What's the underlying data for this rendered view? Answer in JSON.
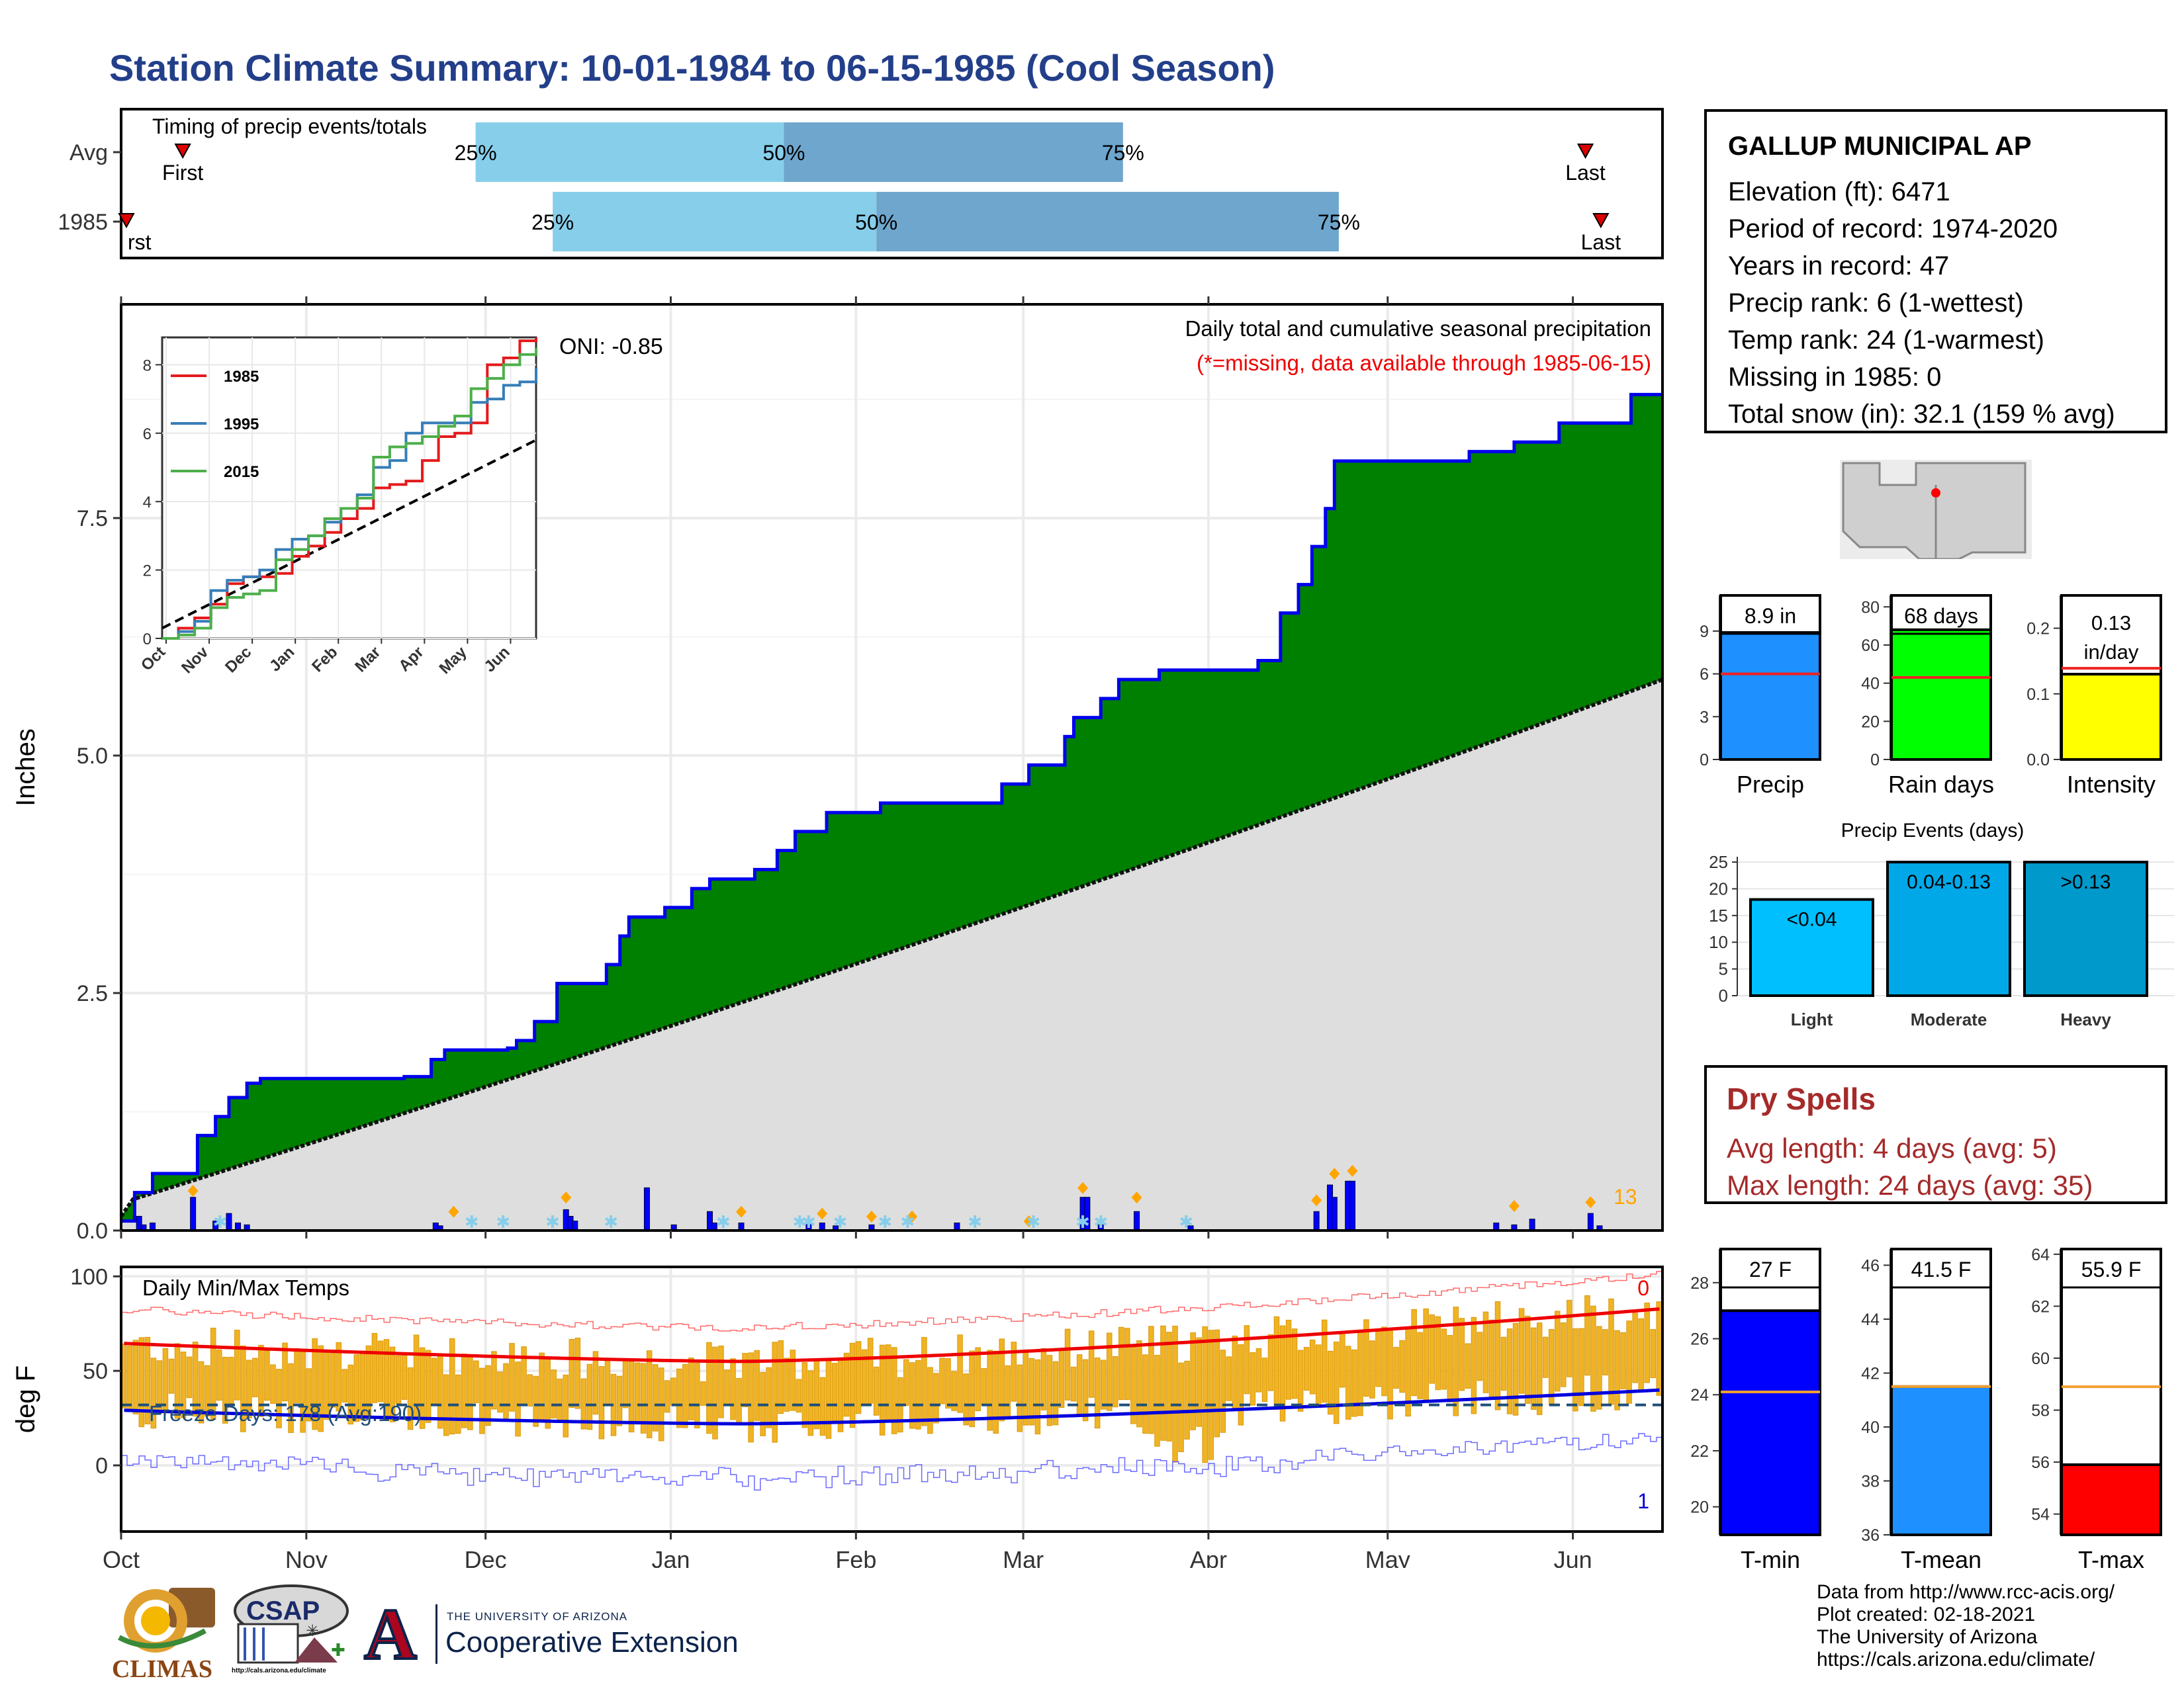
{
  "title": "Station Climate Summary: 10-01-1984 to 06-15-1985 (Cool Season)",
  "timing": {
    "label": "Timing of precip events/totals",
    "rows": [
      {
        "name": "Avg",
        "first_pos": 0.04,
        "q25": 0.23,
        "q50": 0.43,
        "q75": 0.65,
        "last_pos": 0.95
      },
      {
        "name": "1985",
        "first_pos": 0.0,
        "q25": 0.28,
        "q50": 0.49,
        "q75": 0.79,
        "last_pos": 0.96
      }
    ],
    "q_labels": [
      "25%",
      "50%",
      "75%"
    ],
    "first_label": "First",
    "first_label_clipped": "rst",
    "last_label": "Last"
  },
  "main_chart": {
    "ylabel": "Inches",
    "yticks": [
      0.0,
      2.5,
      5.0,
      7.5
    ],
    "ylim": [
      0,
      9.75
    ],
    "oni": "ONI: -0.85",
    "desc": "Daily total and cumulative seasonal precipitation",
    "missing_note": "(*=missing, data available through 1985-06-15)",
    "day_count_label": "13",
    "cumulative_1985": [
      [
        0,
        0.1
      ],
      [
        3,
        0.4
      ],
      [
        7,
        0.6
      ],
      [
        16,
        0.6
      ],
      [
        17,
        1.0
      ],
      [
        21,
        1.2
      ],
      [
        24,
        1.4
      ],
      [
        28,
        1.55
      ],
      [
        31,
        1.6
      ],
      [
        55,
        1.6
      ],
      [
        63,
        1.62
      ],
      [
        69,
        1.8
      ],
      [
        72,
        1.9
      ],
      [
        86,
        1.92
      ],
      [
        88,
        2.0
      ],
      [
        92,
        2.2
      ],
      [
        97,
        2.6
      ],
      [
        103,
        2.6
      ],
      [
        108,
        2.8
      ],
      [
        111,
        3.1
      ],
      [
        113,
        3.3
      ],
      [
        121,
        3.4
      ],
      [
        127,
        3.6
      ],
      [
        131,
        3.7
      ],
      [
        141,
        3.8
      ],
      [
        146,
        4.0
      ],
      [
        150,
        4.2
      ],
      [
        157,
        4.4
      ],
      [
        162,
        4.4
      ],
      [
        169,
        4.5
      ],
      [
        188,
        4.5
      ],
      [
        196,
        4.7
      ],
      [
        202,
        4.9
      ],
      [
        210,
        5.2
      ],
      [
        212,
        5.4
      ],
      [
        218,
        5.6
      ],
      [
        222,
        5.8
      ],
      [
        231,
        5.9
      ],
      [
        253,
        6.0
      ],
      [
        258,
        6.5
      ],
      [
        262,
        6.8
      ],
      [
        265,
        7.2
      ],
      [
        268,
        7.6
      ],
      [
        270,
        8.1
      ],
      [
        290,
        8.1
      ],
      [
        300,
        8.2
      ],
      [
        310,
        8.3
      ],
      [
        320,
        8.5
      ],
      [
        334,
        8.5
      ],
      [
        336,
        8.8
      ],
      [
        343,
        8.8
      ]
    ],
    "cumulative_avg_end": 5.8,
    "daily_events": [
      [
        4,
        0.15
      ],
      [
        5,
        0.06
      ],
      [
        7,
        0.08
      ],
      [
        16,
        0.35
      ],
      [
        21,
        0.1
      ],
      [
        24,
        0.18
      ],
      [
        26,
        0.08
      ],
      [
        28,
        0.06
      ],
      [
        70,
        0.08
      ],
      [
        71,
        0.05
      ],
      [
        99,
        0.22
      ],
      [
        100,
        0.15
      ],
      [
        101,
        0.1
      ],
      [
        117,
        0.45
      ],
      [
        123,
        0.06
      ],
      [
        131,
        0.2
      ],
      [
        132,
        0.08
      ],
      [
        138,
        0.08
      ],
      [
        153,
        0.07
      ],
      [
        156,
        0.08
      ],
      [
        159,
        0.05
      ],
      [
        167,
        0.06
      ],
      [
        186,
        0.08
      ],
      [
        214,
        0.35
      ],
      [
        215,
        0.35
      ],
      [
        218,
        0.06
      ],
      [
        226,
        0.2
      ],
      [
        238,
        0.05
      ],
      [
        266,
        0.2
      ],
      [
        269,
        0.48
      ],
      [
        270,
        0.35
      ],
      [
        273,
        0.52
      ],
      [
        274,
        0.52
      ],
      [
        306,
        0.08
      ],
      [
        310,
        0.06
      ],
      [
        314,
        0.12
      ],
      [
        327,
        0.18
      ],
      [
        329,
        0.05
      ]
    ],
    "orange_marks": [
      [
        16,
        0.32
      ],
      [
        74,
        0.1
      ],
      [
        99,
        0.25
      ],
      [
        138,
        0.1
      ],
      [
        156,
        0.08
      ],
      [
        167,
        0.05
      ],
      [
        176,
        0.05
      ],
      [
        202,
        0.0
      ],
      [
        214,
        0.35
      ],
      [
        226,
        0.25
      ],
      [
        266,
        0.22
      ],
      [
        270,
        0.5
      ],
      [
        274,
        0.53
      ],
      [
        310,
        0.16
      ],
      [
        327,
        0.2
      ]
    ],
    "missing_marks": [
      22,
      78,
      85,
      96,
      109,
      134,
      151,
      153,
      160,
      170,
      175,
      190,
      203,
      214,
      218,
      237
    ]
  },
  "inset": {
    "yticks": [
      0,
      2,
      4,
      6,
      8
    ],
    "months": [
      "Oct",
      "Nov",
      "Dec",
      "Jan",
      "Feb",
      "Mar",
      "Apr",
      "May",
      "Jun"
    ],
    "legend": [
      {
        "name": "1985",
        "color": "#e41a1c"
      },
      {
        "name": "1995",
        "color": "#377eb8"
      },
      {
        "name": "2015",
        "color": "#4daf4a"
      }
    ]
  },
  "temp_chart": {
    "ylabel": "deg F",
    "title": "Daily Min/Max Temps",
    "yticks": [
      0,
      50,
      100
    ],
    "freeze": "Freeze Days: 178 (Avg:190)",
    "label_top": "0",
    "label_bottom": "1"
  },
  "x_months": [
    "Oct",
    "Nov",
    "Dec",
    "Jan",
    "Feb",
    "Mar",
    "Apr",
    "May",
    "Jun"
  ],
  "station": {
    "name": "GALLUP MUNICIPAL AP",
    "lines": [
      "Elevation (ft): 6471",
      "Period of record: 1974-2020",
      "Years in record: 47",
      "Precip rank: 6 (1-wettest)",
      "Temp rank: 24 (1-warmest)",
      "Missing in 1985: 0",
      "Total snow (in): 32.1 (159 % avg)"
    ]
  },
  "stat_bars": [
    {
      "label": "Precip",
      "value_label": "8.9 in",
      "value": 8.9,
      "avg": 6.0,
      "yticks": [
        0,
        3,
        6,
        9
      ],
      "ylim": 11.5,
      "color": "#1e90ff"
    },
    {
      "label": "Rain days",
      "value_label": "68 days",
      "value": 68,
      "avg": 43,
      "yticks": [
        0,
        20,
        40,
        60,
        80
      ],
      "ylim": 86,
      "color": "#00ff00"
    },
    {
      "label": "Intensity",
      "value_label": "0.13",
      "value_label2": "in/day",
      "value": 0.13,
      "avg": 0.139,
      "yticks": [
        0.0,
        0.1,
        0.2
      ],
      "ylim": 0.25,
      "color": "#ffff00"
    }
  ],
  "events": {
    "title": "Precip Events (days)",
    "yticks": [
      0,
      5,
      10,
      15,
      20,
      25
    ],
    "bars": [
      {
        "label": "Light",
        "value_label": "<0.04",
        "value": 18,
        "color": "#00bfff"
      },
      {
        "label": "Moderate",
        "value_label": "0.04-0.13",
        "value": 25,
        "color": "#00a8e8"
      },
      {
        "label": "Heavy",
        "value_label": ">0.13",
        "value": 25,
        "color": "#0099cc"
      }
    ]
  },
  "dry_spells": {
    "title": "Dry Spells",
    "avg": "Avg length: 4 days (avg: 5)",
    "max": "Max length: 24 days (avg: 35)"
  },
  "temp_bars": [
    {
      "label": "T-min",
      "value_label": "27 F",
      "value": 27,
      "avg": 24.1,
      "yticks": [
        20,
        22,
        24,
        26,
        28
      ],
      "ylim": [
        19,
        29.2
      ],
      "color": "#0000ff"
    },
    {
      "label": "T-mean",
      "value_label": "41.5 F",
      "value": 41.5,
      "avg": 41.5,
      "yticks": [
        36,
        38,
        40,
        42,
        44,
        46
      ],
      "ylim": [
        36,
        46.6
      ],
      "color": "#1e90ff"
    },
    {
      "label": "T-max",
      "value_label": "55.9 F",
      "value": 55.9,
      "avg": 58.9,
      "yticks": [
        54,
        56,
        58,
        60,
        62,
        64
      ],
      "ylim": [
        53.2,
        64.2
      ],
      "color": "#ff0000"
    }
  ],
  "credits": [
    "Data from http://www.rcc-acis.org/",
    "Plot created: 02-18-2021",
    "The University of Arizona",
    "https://cals.arizona.edu/climate/"
  ],
  "logos": {
    "climas": "CLIMAS",
    "csap": "CSAP",
    "csap_url": "http://cals.arizona.edu/climate",
    "ua_letter": "A",
    "ua_small": "THE UNIVERSITY OF ARIZONA",
    "ua_big": "Cooperative Extension"
  }
}
